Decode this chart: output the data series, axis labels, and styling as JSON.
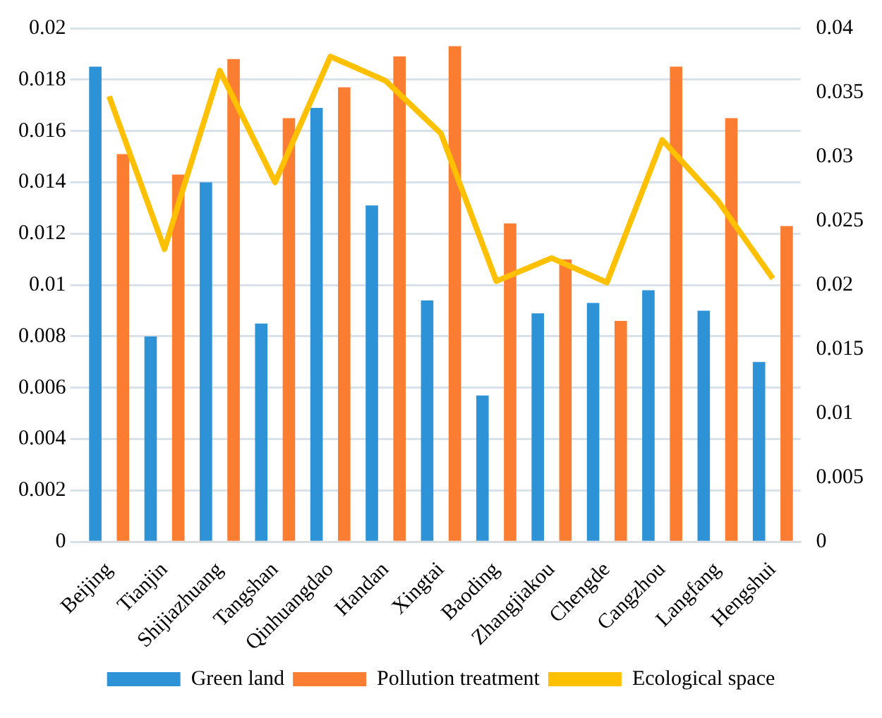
{
  "chart_data": {
    "type": "bar",
    "categories": [
      "Beijing",
      "Tianjin",
      "Shijiazhuang",
      "Tangshan",
      "Qinhuangdao",
      "Handan",
      "Xingtai",
      "Baoding",
      "Zhangjiakou",
      "Chengde",
      "Cangzhou",
      "Langfang",
      "Hengshui"
    ],
    "series": [
      {
        "name": "Green land",
        "color": "#2e93d6",
        "values": [
          0.0185,
          0.008,
          0.014,
          0.0085,
          0.0169,
          0.0131,
          0.0094,
          0.0057,
          0.0089,
          0.0093,
          0.0098,
          0.009,
          0.007
        ]
      },
      {
        "name": "Pollution treatment",
        "color": "#fb7d32",
        "values": [
          0.0151,
          0.0143,
          0.0188,
          0.0165,
          0.0177,
          0.0189,
          0.0193,
          0.0124,
          0.011,
          0.0086,
          0.0185,
          0.0165,
          0.0123
        ]
      },
      {
        "name": "Ecological space",
        "type": "line",
        "axis": "y2",
        "color": "#ffc000",
        "values": [
          0.0347,
          0.0228,
          0.0367,
          0.028,
          0.0378,
          0.0359,
          0.0318,
          0.0203,
          0.0221,
          0.0202,
          0.0313,
          0.0266,
          0.0205
        ]
      }
    ],
    "ylim": [
      0,
      0.02
    ],
    "yticks": [
      0,
      0.002,
      0.004,
      0.006,
      0.008,
      0.01,
      0.012,
      0.014,
      0.016,
      0.018,
      0.02
    ],
    "y2lim": [
      0,
      0.04
    ],
    "y2ticks": [
      0,
      0.005,
      0.01,
      0.015,
      0.02,
      0.025,
      0.03,
      0.035,
      0.04
    ],
    "grid": "y",
    "legend": "bottom",
    "marker": "none"
  }
}
